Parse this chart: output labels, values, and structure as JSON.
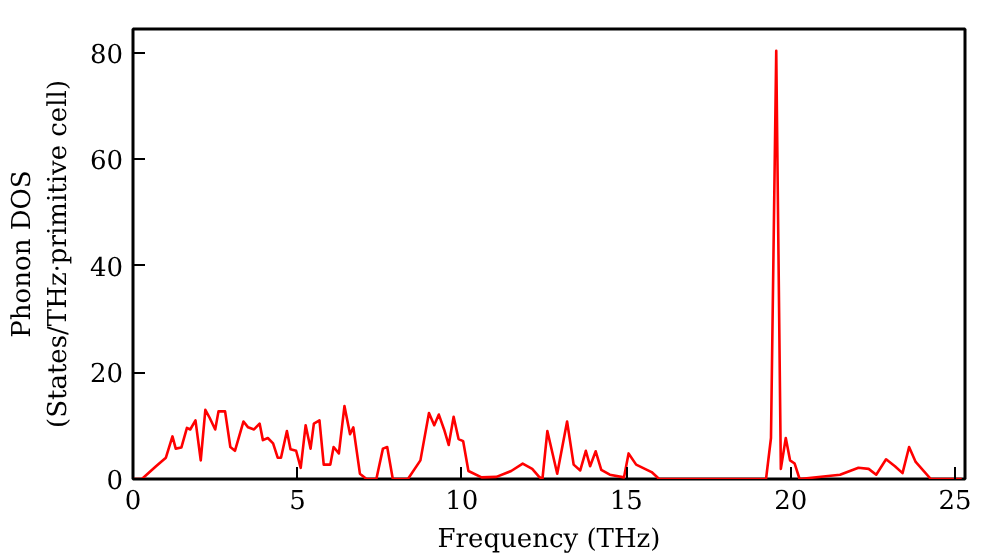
{
  "chart_data": {
    "type": "line",
    "xlabel": "Frequency (THz)",
    "ylabel": "Phonon DOS\n(States/THz·primitive cell)",
    "xlim": [
      0,
      25.3
    ],
    "ylim": [
      0,
      84.5
    ],
    "xticks": [
      0,
      5,
      10,
      15,
      20,
      25
    ],
    "yticks": [
      0,
      20,
      40,
      60,
      80
    ],
    "grid": false,
    "marker": "none",
    "line_style": "solid",
    "series": [
      {
        "color": "#ff0000",
        "x": [
          0,
          0.27,
          0.7,
          1.0,
          1.2,
          1.3,
          1.47,
          1.64,
          1.74,
          1.9,
          2.06,
          2.2,
          2.33,
          2.5,
          2.6,
          2.8,
          2.96,
          3.1,
          3.36,
          3.5,
          3.68,
          3.85,
          3.95,
          4.1,
          4.26,
          4.4,
          4.5,
          4.68,
          4.79,
          4.96,
          5.1,
          5.25,
          5.4,
          5.5,
          5.67,
          5.8,
          6.0,
          6.1,
          6.26,
          6.43,
          6.6,
          6.7,
          6.9,
          7.1,
          7.4,
          7.6,
          7.73,
          7.9,
          8.36,
          8.74,
          9.0,
          9.16,
          9.3,
          9.46,
          9.6,
          9.75,
          9.9,
          10.04,
          10.2,
          10.6,
          11.05,
          11.5,
          11.85,
          12.14,
          12.35,
          12.45,
          12.6,
          12.9,
          13.2,
          13.4,
          13.6,
          13.77,
          13.9,
          14.07,
          14.24,
          14.5,
          14.93,
          15.07,
          15.3,
          15.77,
          16.0,
          19.25,
          19.4,
          19.56,
          19.7,
          19.85,
          19.98,
          20.12,
          20.27,
          21.5,
          22.06,
          22.37,
          22.6,
          22.9,
          23.17,
          23.4,
          23.6,
          23.8,
          24.26,
          25.2
        ],
        "values": [
          0,
          0,
          2.4,
          4,
          8,
          5.7,
          5.9,
          9.6,
          9.3,
          11,
          3.5,
          13,
          11.5,
          9.3,
          12.7,
          12.7,
          6,
          5.3,
          10.8,
          9.7,
          9.3,
          10.4,
          7.3,
          7.7,
          6.7,
          4,
          4,
          9,
          5.6,
          5.3,
          2.1,
          10.1,
          5.7,
          10.4,
          11,
          2.7,
          2.7,
          6,
          4.8,
          13.7,
          8.4,
          9.7,
          1,
          0,
          0,
          5.7,
          6,
          0,
          0,
          3.5,
          12.4,
          10.1,
          12.1,
          9.3,
          6.4,
          11.7,
          7.5,
          7.1,
          1.5,
          0.3,
          0.4,
          1.5,
          2.9,
          1.9,
          0.4,
          0,
          9,
          1,
          10.8,
          2.7,
          1.6,
          5.3,
          2.4,
          5.2,
          1.7,
          0.8,
          0.3,
          4.8,
          2.7,
          1.3,
          0,
          0,
          7.7,
          80.4,
          1.9,
          7.7,
          3.5,
          2.9,
          0,
          0.8,
          2.1,
          1.9,
          0.8,
          3.7,
          2.4,
          1.1,
          6,
          3.2,
          0,
          0
        ]
      }
    ]
  }
}
